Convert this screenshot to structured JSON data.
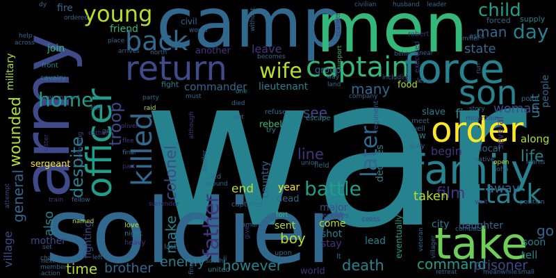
{
  "background": "#000000",
  "palette": {
    "dark_purple": "#46337e",
    "indigo": "#3e4a89",
    "blue": "#31688e",
    "teal_blue": "#26828e",
    "teal": "#1f9e89",
    "green": "#35b779",
    "light_green": "#6ece58",
    "yellow_green": "#b5de2b",
    "yellow": "#fde725"
  },
  "words": [
    {
      "text": "war",
      "color": "#26828e"
    },
    {
      "text": "army",
      "color": "#3e4a89"
    },
    {
      "text": "camp",
      "color": "#31688e"
    },
    {
      "text": "men",
      "color": "#35b779"
    },
    {
      "text": "soldier",
      "color": "#31688e"
    },
    {
      "text": "take",
      "color": "#6ece58"
    },
    {
      "text": "family",
      "color": "#26828e"
    },
    {
      "text": "force",
      "color": "#26828e"
    },
    {
      "text": "order",
      "color": "#fde725"
    },
    {
      "text": "son",
      "color": "#26828e"
    },
    {
      "text": "officer",
      "color": "#1f9e89"
    },
    {
      "text": "return",
      "color": "#3e4a89"
    },
    {
      "text": "captain",
      "color": "#35b779"
    },
    {
      "text": "back",
      "color": "#31688e"
    },
    {
      "text": "killed",
      "color": "#31688e"
    },
    {
      "text": "young",
      "color": "#b5de2b"
    },
    {
      "text": "attack",
      "color": "#26828e"
    },
    {
      "text": "wife",
      "color": "#b5de2b"
    },
    {
      "text": "battle",
      "color": "#1f9e89"
    },
    {
      "text": "later",
      "color": "#31688e"
    },
    {
      "text": "father",
      "color": "#46337e"
    },
    {
      "text": "child",
      "color": "#1f9e89"
    },
    {
      "text": "day",
      "color": "#26828e"
    },
    {
      "text": "man",
      "color": "#31688e"
    },
    {
      "text": "troop",
      "color": "#3e4a89"
    },
    {
      "text": "home",
      "color": "#1f9e89"
    },
    {
      "text": "despite",
      "color": "#26828e"
    },
    {
      "text": "wounded",
      "color": "#b5de2b"
    },
    {
      "text": "general",
      "color": "#31688e"
    },
    {
      "text": "colonel",
      "color": "#3e4a89"
    },
    {
      "text": "make",
      "color": "#26828e"
    },
    {
      "text": "time",
      "color": "#b5de2b"
    },
    {
      "text": "brother",
      "color": "#31688e"
    },
    {
      "text": "enemy",
      "color": "#26828e"
    },
    {
      "text": "however",
      "color": "#26828e"
    },
    {
      "text": "death",
      "color": "#26828e"
    },
    {
      "text": "command",
      "color": "#1f9e89"
    },
    {
      "text": "prisoner",
      "color": "#3e4a89"
    },
    {
      "text": "boy",
      "color": "#b5de2b"
    },
    {
      "text": "end",
      "color": "#b5de2b"
    },
    {
      "text": "film",
      "color": "#46337e"
    },
    {
      "text": "state",
      "color": "#31688e"
    },
    {
      "text": "life",
      "color": "#26828e"
    },
    {
      "text": "woman",
      "color": "#3e4a89"
    },
    {
      "text": "find",
      "color": "#26828e"
    },
    {
      "text": "see",
      "color": "#3e4a89"
    },
    {
      "text": "many",
      "color": "#31688e"
    },
    {
      "text": "leave",
      "color": "#46337e"
    },
    {
      "text": "line",
      "color": "#46337e"
    },
    {
      "text": "taken",
      "color": "#b5de2b"
    },
    {
      "text": "away",
      "color": "#31688e"
    },
    {
      "text": "unit",
      "color": "#26828e"
    },
    {
      "text": "go",
      "color": "#31688e"
    },
    {
      "text": "village",
      "color": "#3e4a89"
    },
    {
      "text": "military",
      "color": "#b5de2b"
    },
    {
      "text": "also",
      "color": "#26828e"
    },
    {
      "text": "mother",
      "color": "#3e4a89"
    },
    {
      "text": "fighting",
      "color": "#3e4a89"
    },
    {
      "text": "sergeant",
      "color": "#fde725"
    },
    {
      "text": "commander",
      "color": "#31688e"
    },
    {
      "text": "lieutenant",
      "color": "#26828e"
    },
    {
      "text": "rebel",
      "color": "#35b779"
    },
    {
      "text": "country",
      "color": "#31688e"
    },
    {
      "text": "decides",
      "color": "#26828e"
    },
    {
      "text": "begin",
      "color": "#46337e"
    },
    {
      "text": "slave",
      "color": "#26828e"
    },
    {
      "text": "group",
      "color": "#31688e"
    },
    {
      "text": "another",
      "color": "#46337e"
    },
    {
      "text": "friend",
      "color": "#35b779"
    },
    {
      "text": "fire",
      "color": "#31688e"
    },
    {
      "text": "join",
      "color": "#35b779"
    },
    {
      "text": "year",
      "color": "#fde725"
    },
    {
      "text": "dead",
      "color": "#31688e"
    },
    {
      "text": "major",
      "color": "#3e4a89"
    },
    {
      "text": "come",
      "color": "#b5de2b"
    },
    {
      "text": "shot",
      "color": "#26828e"
    },
    {
      "text": "sent",
      "color": "#b5de2b"
    },
    {
      "text": "stay",
      "color": "#46337e"
    },
    {
      "text": "lead",
      "color": "#26828e"
    },
    {
      "text": "world",
      "color": "#46337e"
    },
    {
      "text": "city",
      "color": "#26828e"
    },
    {
      "text": "daughter",
      "color": "#31688e"
    },
    {
      "text": "soon",
      "color": "#26828e"
    },
    {
      "text": "tell",
      "color": "#26828e"
    },
    {
      "text": "several",
      "color": "#46337e"
    },
    {
      "text": "along",
      "color": "#b5de2b"
    },
    {
      "text": "local",
      "color": "#31688e"
    },
    {
      "text": "people",
      "color": "#31688e"
    },
    {
      "text": "food",
      "color": "#b5de2b"
    },
    {
      "text": "eventually",
      "color": "#1f9e89"
    },
    {
      "text": "civil",
      "color": "#31688e"
    },
    {
      "text": "fight",
      "color": "#26828e"
    },
    {
      "text": "front",
      "color": "#26828e"
    },
    {
      "text": "cavalry",
      "color": "#26828e"
    },
    {
      "text": "supply",
      "color": "#26828e"
    },
    {
      "text": "forced",
      "color": "#31688e"
    },
    {
      "text": "robert",
      "color": "#46337e"
    },
    {
      "text": "asks",
      "color": "#31688e"
    },
    {
      "text": "executed",
      "color": "#46337e"
    },
    {
      "text": "regiment",
      "color": "#3e4a89"
    },
    {
      "text": "escape",
      "color": "#26828e"
    },
    {
      "text": "refuse",
      "color": "#31688e"
    },
    {
      "text": "try",
      "color": "#26828e"
    },
    {
      "text": "meet",
      "color": "#31688e"
    },
    {
      "text": "well",
      "color": "#31688e"
    },
    {
      "text": "new",
      "color": "#26828e"
    },
    {
      "text": "duty",
      "color": "#31688e"
    },
    {
      "text": "mountain",
      "color": "#3e4a89"
    },
    {
      "text": "story",
      "color": "#31688e"
    },
    {
      "text": "point",
      "color": "#31688e"
    },
    {
      "text": "learns",
      "color": "#31688e"
    },
    {
      "text": "field",
      "color": "#31688e"
    },
    {
      "text": "union",
      "color": "#31688e"
    },
    {
      "text": "led",
      "color": "#31688e"
    },
    {
      "text": "ground",
      "color": "#31688e"
    },
    {
      "text": "captured",
      "color": "#31688e"
    },
    {
      "text": "fort",
      "color": "#35b779"
    },
    {
      "text": "receives",
      "color": "#3e4a89"
    },
    {
      "text": "cross",
      "color": "#3e4a89"
    },
    {
      "text": "among",
      "color": "#31688e"
    },
    {
      "text": "give",
      "color": "#46337e"
    },
    {
      "text": "upon",
      "color": "#31688e"
    },
    {
      "text": "lt",
      "color": "#31688e"
    },
    {
      "text": "south",
      "color": "#31688e"
    },
    {
      "text": "ii",
      "color": "#31688e"
    },
    {
      "text": "united",
      "color": "#26828e"
    },
    {
      "text": "last",
      "color": "#31688e"
    },
    {
      "text": "private",
      "color": "#31688e"
    },
    {
      "text": "finally",
      "color": "#31688e"
    },
    {
      "text": "love",
      "color": "#b5de2b"
    },
    {
      "text": "night",
      "color": "#26828e"
    },
    {
      "text": "heavy",
      "color": "#46337e"
    },
    {
      "text": "surrender",
      "color": "#46337e"
    },
    {
      "text": "train",
      "color": "#46337e"
    },
    {
      "text": "fellow",
      "color": "#31688e"
    },
    {
      "text": "named",
      "color": "#b5de2b"
    },
    {
      "text": "attempt",
      "color": "#3e4a89"
    },
    {
      "text": "next",
      "color": "#31688e"
    },
    {
      "text": "charge",
      "color": "#31688e"
    },
    {
      "text": "member",
      "color": "#31688e"
    },
    {
      "text": "action",
      "color": "#31688e"
    },
    {
      "text": "set",
      "color": "#31688e"
    },
    {
      "text": "left",
      "color": "#31688e"
    },
    {
      "text": "sister",
      "color": "#46337e"
    },
    {
      "text": "esther",
      "color": "#46337e"
    },
    {
      "text": "following",
      "color": "#3e4a89"
    },
    {
      "text": "oliver",
      "color": "#46337e"
    },
    {
      "text": "flee",
      "color": "#46337e"
    },
    {
      "text": "get",
      "color": "#31688e"
    },
    {
      "text": "raid",
      "color": "#b5de2b"
    },
    {
      "text": "party",
      "color": "#31688e"
    },
    {
      "text": "final",
      "color": "#31688e"
    },
    {
      "text": "part",
      "color": "#46337e"
    },
    {
      "text": "border",
      "color": "#31688e"
    },
    {
      "text": "although",
      "color": "#46337e"
    },
    {
      "text": "must",
      "color": "#31688e"
    },
    {
      "text": "died",
      "color": "#31688e"
    },
    {
      "text": "put",
      "color": "#31688e"
    },
    {
      "text": "one",
      "color": "#26828e"
    },
    {
      "text": "still",
      "color": "#31688e"
    },
    {
      "text": "government",
      "color": "#31688e"
    },
    {
      "text": "help",
      "color": "#31688e"
    },
    {
      "text": "across",
      "color": "#31688e"
    },
    {
      "text": "dy",
      "color": "#31688e"
    },
    {
      "text": "ordered",
      "color": "#31688e"
    },
    {
      "text": "place",
      "color": "#31688e"
    },
    {
      "text": "arrives",
      "color": "#31688e"
    },
    {
      "text": "north",
      "color": "#31688e"
    },
    {
      "text": "even",
      "color": "#31688e"
    },
    {
      "text": "becomes",
      "color": "#31688e"
    },
    {
      "text": "would",
      "color": "#31688e"
    },
    {
      "text": "without",
      "color": "#31688e"
    },
    {
      "text": "scarlett",
      "color": "#46337e"
    },
    {
      "text": "civilian",
      "color": "#31688e"
    },
    {
      "text": "husband",
      "color": "#31688e"
    },
    {
      "text": "leader",
      "color": "#31688e"
    },
    {
      "text": "support",
      "color": "#35b779"
    },
    {
      "text": "land",
      "color": "#31688e"
    },
    {
      "text": "company",
      "color": "#31688e"
    },
    {
      "text": "way",
      "color": "#31688e"
    },
    {
      "text": "including",
      "color": "#31688e"
    },
    {
      "text": "behind",
      "color": "#31688e"
    },
    {
      "text": "near",
      "color": "#31688e"
    },
    {
      "text": "letter",
      "color": "#31688e"
    },
    {
      "text": "run",
      "color": "#31688e"
    },
    {
      "text": "leaving",
      "color": "#31688e"
    },
    {
      "text": "miller",
      "color": "#31688e"
    },
    {
      "text": "native",
      "color": "#31688e"
    },
    {
      "text": "open",
      "color": "#b5de2b"
    },
    {
      "text": "john",
      "color": "#31688e"
    },
    {
      "text": "visit",
      "color": "#46337e"
    },
    {
      "text": "position",
      "color": "#31688e"
    },
    {
      "text": "combat",
      "color": "#31688e"
    },
    {
      "text": "veteran",
      "color": "#31688e"
    },
    {
      "text": "villager",
      "color": "#31688e"
    },
    {
      "text": "meanwhile",
      "color": "#31688e"
    },
    {
      "text": "small",
      "color": "#31688e"
    },
    {
      "text": "retreat",
      "color": "#31688e"
    },
    {
      "text": "cross",
      "color": "#31688e"
    }
  ]
}
